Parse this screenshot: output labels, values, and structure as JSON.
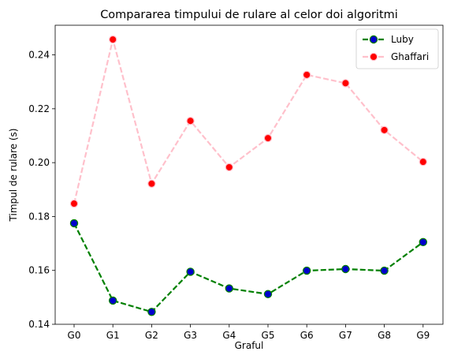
{
  "chart_data": {
    "type": "line",
    "title": "Compararea timpului de rulare al celor doi algoritmi",
    "xlabel": "Graful",
    "ylabel": "Timpul de rulare (s)",
    "categories": [
      "G0",
      "G1",
      "G2",
      "G3",
      "G4",
      "G5",
      "G6",
      "G7",
      "G8",
      "G9"
    ],
    "ylim": [
      0.14,
      0.251
    ],
    "yticks": [
      "0.14",
      "0.16",
      "0.18",
      "0.20",
      "0.22",
      "0.24"
    ],
    "ytick_values": [
      0.14,
      0.16,
      0.18,
      0.2,
      0.22,
      0.24
    ],
    "grid": false,
    "legend_position": "top-right",
    "series": [
      {
        "name": "Luby",
        "values": [
          0.1775,
          0.1488,
          0.1446,
          0.1595,
          0.1533,
          0.1512,
          0.1599,
          0.1605,
          0.1599,
          0.1705
        ],
        "line_color": "#008000",
        "marker_face": "#0000cc",
        "marker_edge": "#008000",
        "line_style": "dashed"
      },
      {
        "name": "Ghaffari",
        "values": [
          0.1848,
          0.2457,
          0.1922,
          0.2155,
          0.1983,
          0.2091,
          0.2326,
          0.2295,
          0.2121,
          0.2003
        ],
        "line_color": "#ffc0cb",
        "marker_face": "#ff0000",
        "marker_edge": "#ffc0cb",
        "line_style": "dashed"
      }
    ]
  }
}
